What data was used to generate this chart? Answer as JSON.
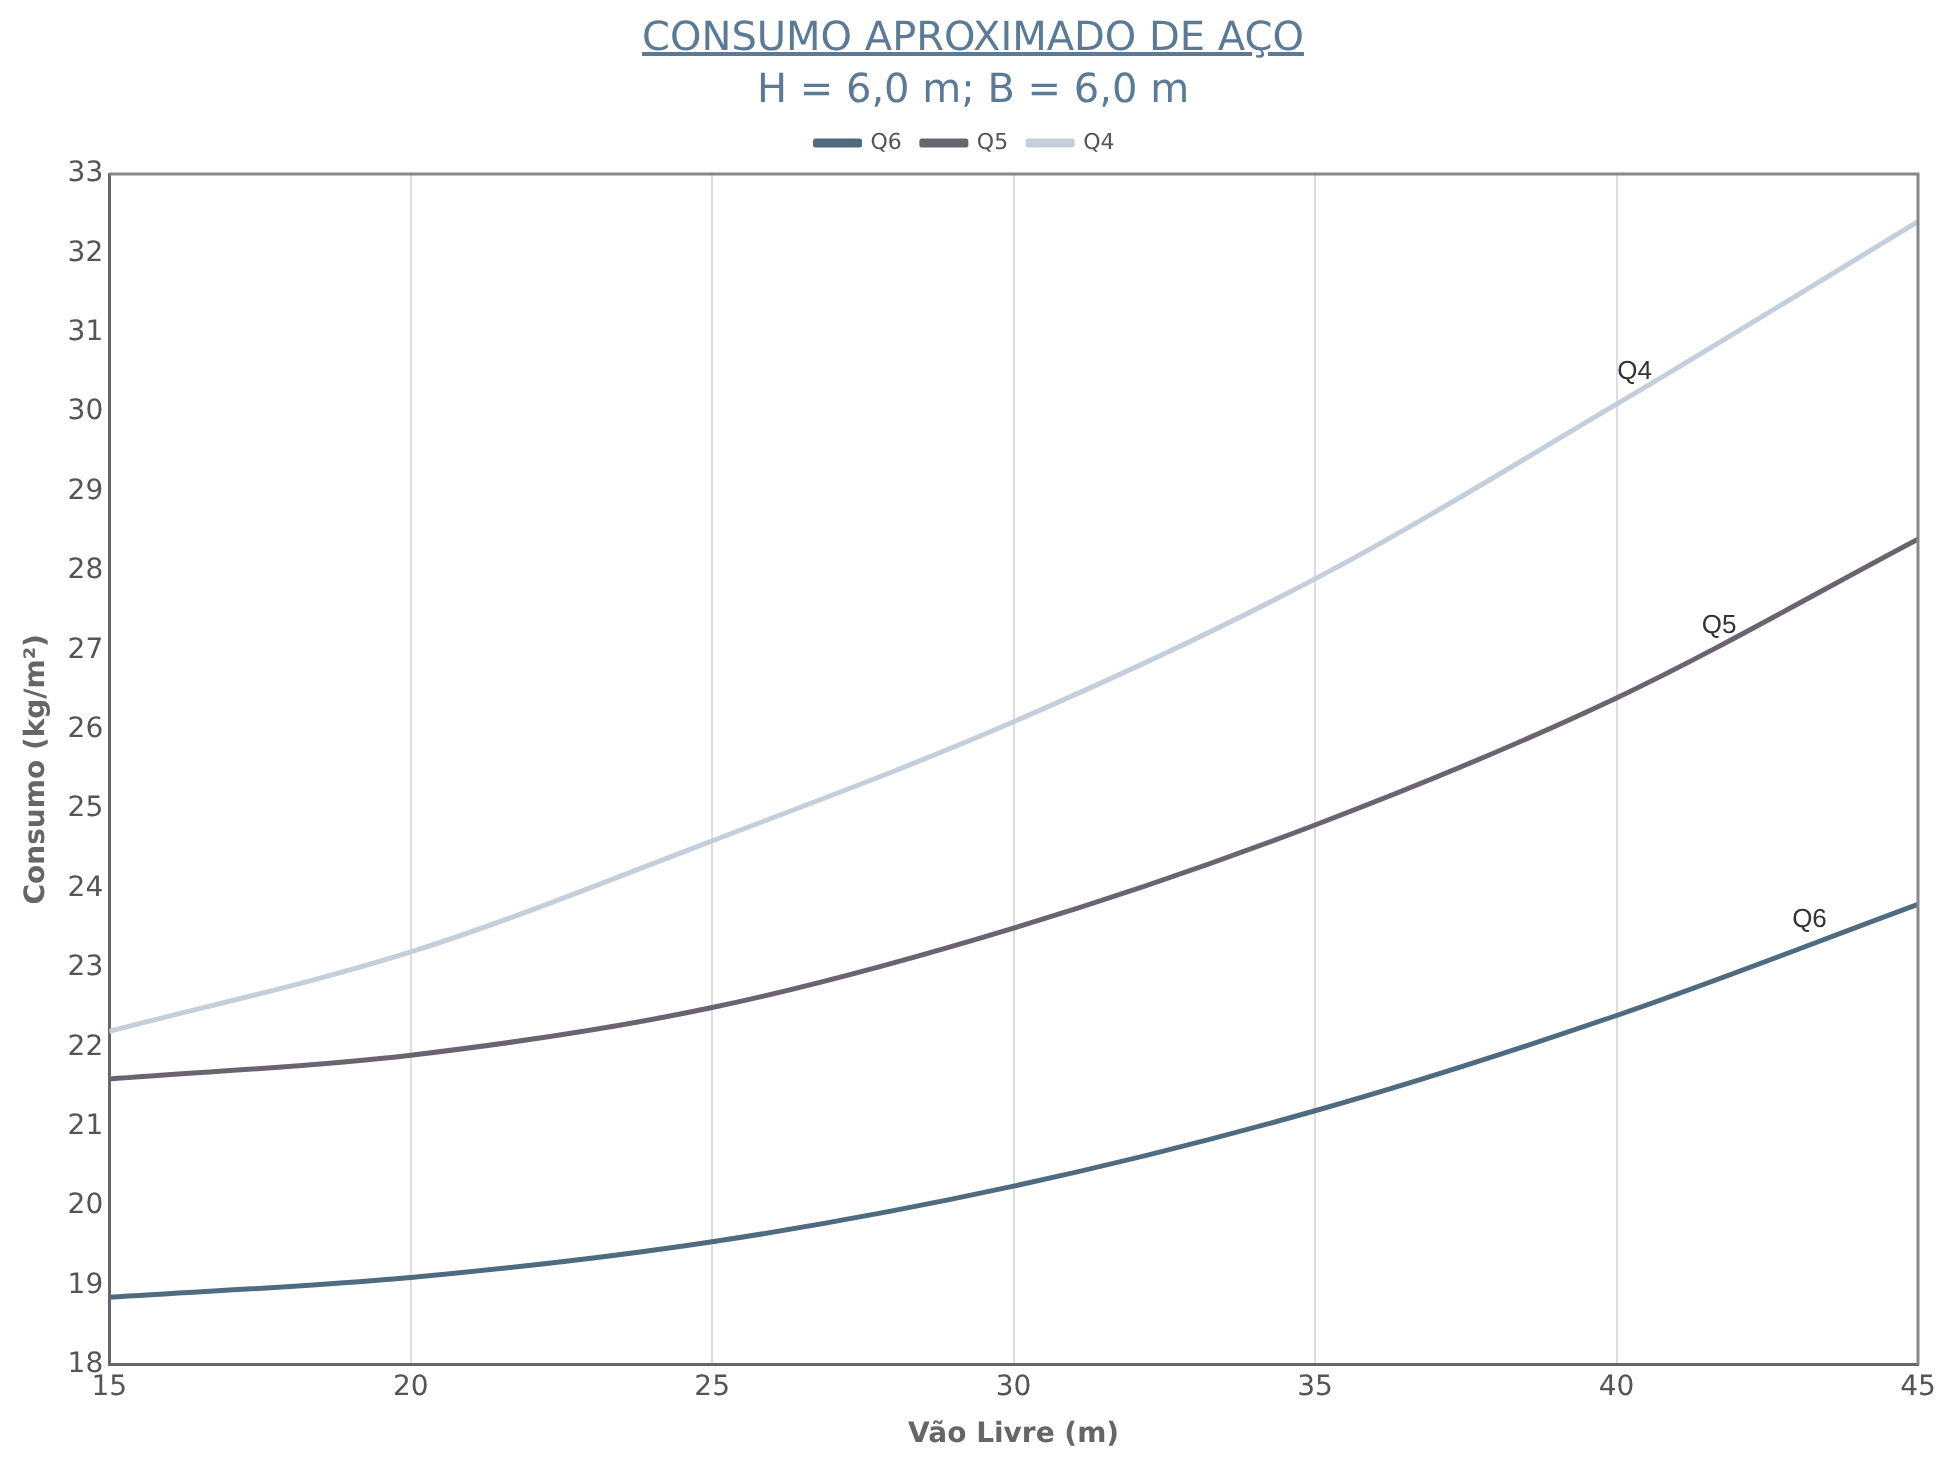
{
  "chart_data": {
    "type": "line",
    "title": "CONSUMO APROXIMADO DE AÇO",
    "subtitle": "H = 6,0 m; B = 6,0 m",
    "xlabel": "Vão Livre (m)",
    "ylabel": "Consumo (kg/m²)",
    "x": [
      15,
      20,
      25,
      30,
      35,
      40,
      45
    ],
    "series": [
      {
        "name": "Q6",
        "color": "#4f6b80",
        "values": [
          18.85,
          19.1,
          19.55,
          20.25,
          21.2,
          22.4,
          23.8
        ]
      },
      {
        "name": "Q5",
        "color": "#6b6470",
        "values": [
          21.6,
          21.9,
          22.5,
          23.5,
          24.8,
          26.4,
          28.4
        ]
      },
      {
        "name": "Q4",
        "color": "#c5cedb",
        "values": [
          22.2,
          23.2,
          24.6,
          26.1,
          27.9,
          30.1,
          32.4
        ]
      }
    ],
    "annotations": [
      {
        "text": "Q4",
        "x": 40.3,
        "y": 30.2
      },
      {
        "text": "Q5",
        "x": 41.7,
        "y": 27.0
      },
      {
        "text": "Q6",
        "x": 43.2,
        "y": 23.3
      }
    ],
    "xlim": [
      15,
      45
    ],
    "xticks": [
      15,
      20,
      25,
      30,
      35,
      40,
      45
    ],
    "ylim": [
      18,
      33
    ],
    "yticks": [
      18,
      19,
      20,
      21,
      22,
      23,
      24,
      25,
      26,
      27,
      28,
      29,
      30,
      31,
      32,
      33
    ],
    "grid": "x",
    "legend": "top",
    "marker": "none",
    "line_style": "solid"
  }
}
